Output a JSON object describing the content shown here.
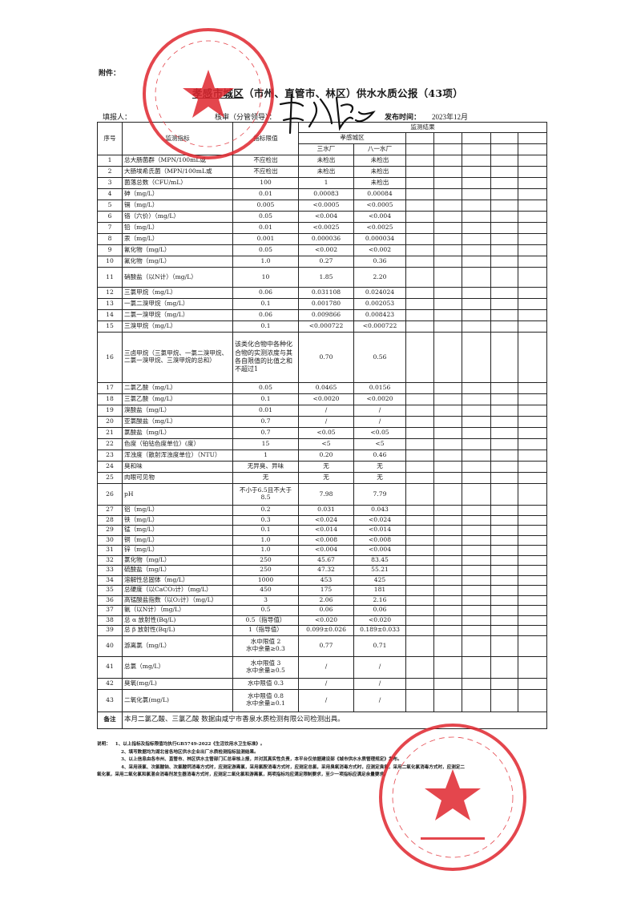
{
  "header": {
    "attachment_label": "附件：",
    "title_region": "孝感市城区",
    "title_rest": "（市州、直管市、林区）供水水质公报（43项）",
    "filler_label": "填报人：",
    "reviewer_label": "核审（分管领导）：",
    "publish_label": "发布时间：",
    "publish_date": "2023年12月"
  },
  "table": {
    "headers": {
      "seq": "序号",
      "indicator": "监测指标",
      "limit": "指标限值",
      "results": "监测结果",
      "district": "孝感城区",
      "plants": [
        "三水厂",
        "八一水厂"
      ]
    },
    "rows": [
      {
        "no": "1",
        "name": "总大肠菌群（MPN/100mL或",
        "limit": "不应检出",
        "a": "未检出",
        "b": "未检出"
      },
      {
        "no": "2",
        "name": "大肠埃希氏菌（MPN/100mL或",
        "limit": "不应检出",
        "a": "未检出",
        "b": "未检出"
      },
      {
        "no": "3",
        "name": "菌落总数（CFU/mL）",
        "limit": "100",
        "a": "1",
        "b": "未检出"
      },
      {
        "no": "4",
        "name": "砷（mg/L）",
        "limit": "0.01",
        "a": "0.00083",
        "b": "0.00084"
      },
      {
        "no": "5",
        "name": "镉（mg/L）",
        "limit": "0.005",
        "a": "<0.0005",
        "b": "<0.0005"
      },
      {
        "no": "6",
        "name": "铬（六价）（mg/L）",
        "limit": "0.05",
        "a": "<0.004",
        "b": "<0.004"
      },
      {
        "no": "7",
        "name": "铅（mg/L）",
        "limit": "0.01",
        "a": "<0.0025",
        "b": "<0.0025"
      },
      {
        "no": "8",
        "name": "汞（mg/L）",
        "limit": "0.001",
        "a": "0.000036",
        "b": "0.000034"
      },
      {
        "no": "9",
        "name": "氰化物（mg/L）",
        "limit": "0.05",
        "a": "<0.002",
        "b": "<0.002"
      },
      {
        "no": "10",
        "name": "氟化物（mg/L）",
        "limit": "1.0",
        "a": "0.27",
        "b": "0.36"
      },
      {
        "no": "11",
        "name": "硝酸盐（以N计）（mg/L）",
        "limit": "10",
        "a": "1.85",
        "b": "2.20"
      },
      {
        "no": "12",
        "name": "三氯甲烷（mg/L）",
        "limit": "0.06",
        "a": "0.031108",
        "b": "0.024024"
      },
      {
        "no": "13",
        "name": "一氯二溴甲烷（mg/L）",
        "limit": "0.1",
        "a": "0.001780",
        "b": "0.002053"
      },
      {
        "no": "14",
        "name": "二氯一溴甲烷（mg/L）",
        "limit": "0.06",
        "a": "0.009866",
        "b": "0.008423"
      },
      {
        "no": "15",
        "name": "三溴甲烷（mg/L）",
        "limit": "0.1",
        "a": "<0.000722",
        "b": "<0.000722"
      },
      {
        "no": "16",
        "name": "三卤甲烷（三氯甲烷、一氯二溴甲烷、二氯一溴甲烷、三溴甲烷的总和）",
        "limit": "该类化合物中各种化合物的实测浓度与其各自限值的比值之和不超过1",
        "a": "0.70",
        "b": "0.56"
      },
      {
        "no": "17",
        "name": "二氯乙酸（mg/L）",
        "limit": "0.05",
        "a": "0.0465",
        "b": "0.0156"
      },
      {
        "no": "18",
        "name": "三氯乙酸（mg/L）",
        "limit": "0.1",
        "a": "<0.0020",
        "b": "<0.0020"
      },
      {
        "no": "19",
        "name": "溴酸盐（mg/L）",
        "limit": "0.01",
        "a": "/",
        "b": "/"
      },
      {
        "no": "20",
        "name": "亚氯酸盐（mg/L）",
        "limit": "0.7",
        "a": "/",
        "b": "/"
      },
      {
        "no": "21",
        "name": "氯酸盐（mg/L）",
        "limit": "0.7",
        "a": "<0.05",
        "b": "<0.05"
      },
      {
        "no": "22",
        "name": "色度（铂钴色度单位）(度）",
        "limit": "15",
        "a": "<5",
        "b": "<5"
      },
      {
        "no": "23",
        "name": "浑浊度（散射浑浊度单位）（NTU）",
        "limit": "1",
        "a": "0.20",
        "b": "0.46"
      },
      {
        "no": "24",
        "name": "臭和味",
        "limit": "无异臭、异味",
        "a": "无",
        "b": "无"
      },
      {
        "no": "25",
        "name": "肉眼可见物",
        "limit": "无",
        "a": "无",
        "b": "无"
      },
      {
        "no": "26",
        "name": "pH",
        "limit": "不小于6.5且不大于8.5",
        "a": "7.98",
        "b": "7.79"
      },
      {
        "no": "27",
        "name": "铝（mg/L）",
        "limit": "0.2",
        "a": "0.031",
        "b": "0.043"
      },
      {
        "no": "28",
        "name": "铁（mg/L）",
        "limit": "0.3",
        "a": "<0.024",
        "b": "<0.024"
      },
      {
        "no": "29",
        "name": "锰（mg/L）",
        "limit": "0.1",
        "a": "<0.014",
        "b": "<0.014"
      },
      {
        "no": "30",
        "name": "铜（mg/L）",
        "limit": "1.0",
        "a": "<0.008",
        "b": "<0.008"
      },
      {
        "no": "31",
        "name": "锌（mg/L）",
        "limit": "1.0",
        "a": "<0.004",
        "b": "<0.004"
      },
      {
        "no": "32",
        "name": "氯化物（mg/L）",
        "limit": "250",
        "a": "45.67",
        "b": "83.45"
      },
      {
        "no": "33",
        "name": "硫酸盐（mg/L）",
        "limit": "250",
        "a": "47.32",
        "b": "55.21"
      },
      {
        "no": "34",
        "name": "溶解性总固体（mg/L）",
        "limit": "1000",
        "a": "453",
        "b": "425"
      },
      {
        "no": "35",
        "name": "总硬度（以CaCO₃计）（mg/L）",
        "limit": "450",
        "a": "175",
        "b": "181"
      },
      {
        "no": "36",
        "name": "高锰酸盐指数（以O₂计）（mg/L）",
        "limit": "3",
        "a": "2.06",
        "b": "2.16"
      },
      {
        "no": "37",
        "name": "氨（以N计）（mg/L）",
        "limit": "0.5",
        "a": "0.06",
        "b": "0.06"
      },
      {
        "no": "38",
        "name": "总 α 放射性(Bq/L)",
        "limit": "0.5（指导值）",
        "a": "<0.020",
        "b": "<0.020"
      },
      {
        "no": "39",
        "name": "总 β 放射性(Bq/L)",
        "limit": "1（指导值）",
        "a": "0.099±0.026",
        "b": "0.189±0.033"
      },
      {
        "no": "40",
        "name": "游离氯（mg/L）",
        "limit": "水中限值 2\n水中余量≥0.3",
        "a": "0.77",
        "b": "0.71"
      },
      {
        "no": "41",
        "name": "总氯（mg/L）",
        "limit": "水中限值 3\n水中余量≥0.5",
        "a": "/",
        "b": "/"
      },
      {
        "no": "42",
        "name": "臭氧(mg/L)",
        "limit": "水中限值 0.3",
        "a": "/",
        "b": "/"
      },
      {
        "no": "43",
        "name": "二氧化氯(mg/L)",
        "limit": "水中限值 0.8\n水中余量≥0.1",
        "a": "/",
        "b": "/"
      }
    ],
    "remark_label": "备注",
    "remark_text": "本月二氯乙酸、三氯乙酸 数据由咸宁市香泉水质检测有限公司检测出具。"
  },
  "notes": {
    "label": "说明：",
    "items": [
      "1、以上指标及指标限值均执行GB5749-2022《生活饮用水卫生标准》。",
      "2、填写数据均为湖北省各地区供水企业出厂水质检测指标监测结果。",
      "3、以上信息由各市州、直管市、林区供水主管部门汇总审核上报，并对其真实性负责，本平台仅依据建设部《城市供水水质管理规定》发布。",
      "4、采用液氯、次氯酸钠、次氯酸钙消毒方式时，应测定游离氯，采用氯胺消毒方式时，应测定总氯，采用臭氧消毒方式时，应测定臭氧，采用二氧化氯消毒方式时，应测定二",
      "氧化氯，采用二氧化氯和氯混合消毒剂发生器消毒方式时，应测定二氧化氯和游离氯，两项指标均应满足限制要求，至少一项指标应满足余量要求。"
    ]
  },
  "stamps": {
    "top": {
      "text": "孝感市自来水有限公司",
      "code": "4209020253",
      "color": "#e0262e"
    },
    "bottom": {
      "text": "咸宁市香泉水质检测有限公司",
      "bottom_text": "检验检测专用章",
      "color": "#e0262e"
    }
  }
}
